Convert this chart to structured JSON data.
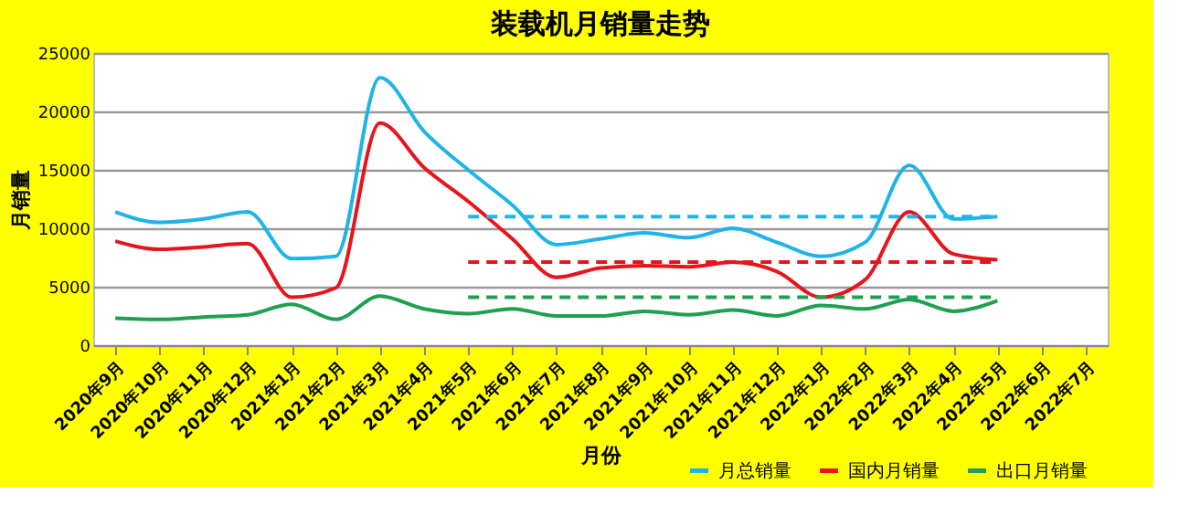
{
  "chart_data": {
    "type": "line",
    "title": "装载机月销量走势",
    "xlabel": "月份",
    "ylabel": "月销量",
    "categories": [
      "2020年9月",
      "2020年10月",
      "2020年11月",
      "2020年12月",
      "2021年1月",
      "2021年2月",
      "2021年3月",
      "2021年4月",
      "2021年5月",
      "2021年6月",
      "2021年7月",
      "2021年8月",
      "2021年9月",
      "2021年10月",
      "2021年11月",
      "2021年12月",
      "2022年1月",
      "2022年2月",
      "2022年3月",
      "2022年4月",
      "2022年5月",
      "2022年6月",
      "2022年7月"
    ],
    "series": [
      {
        "name": "月总销量",
        "color": "#1fb4e8",
        "values": [
          11400,
          10500,
          10800,
          11400,
          7400,
          7600,
          22900,
          18300,
          15000,
          12000,
          8600,
          9100,
          9600,
          9200,
          10000,
          8800,
          7600,
          8800,
          15400,
          10800,
          11000,
          null,
          null
        ]
      },
      {
        "name": "国内月销量",
        "color": "#e8141c",
        "values": [
          8900,
          8200,
          8400,
          8700,
          4100,
          4900,
          19000,
          15200,
          12300,
          9100,
          5800,
          6600,
          6800,
          6700,
          7100,
          6300,
          4100,
          5600,
          11400,
          7800,
          7300,
          null,
          null
        ]
      },
      {
        "name": "出口月销量",
        "color": "#1fa050",
        "values": [
          2300,
          2200,
          2400,
          2600,
          3500,
          2200,
          4200,
          3100,
          2700,
          3100,
          2500,
          2500,
          2900,
          2600,
          3000,
          2500,
          3400,
          3100,
          3900,
          2900,
          3800,
          null,
          null
        ]
      },
      {
        "color": "#1fb4e8",
        "line_style": "dashed",
        "values": [
          null,
          null,
          null,
          null,
          null,
          null,
          null,
          null,
          11000,
          11000,
          11000,
          11000,
          11000,
          11000,
          11000,
          11000,
          11000,
          11000,
          11000,
          11000,
          11000,
          null,
          null
        ]
      },
      {
        "color": "#e8141c",
        "line_style": "dashed",
        "values": [
          null,
          null,
          null,
          null,
          null,
          null,
          null,
          null,
          7100,
          7100,
          7100,
          7100,
          7100,
          7100,
          7100,
          7100,
          7100,
          7100,
          7100,
          7100,
          7100,
          null,
          null
        ]
      },
      {
        "color": "#1fa050",
        "line_style": "dashed",
        "values": [
          null,
          null,
          null,
          null,
          null,
          null,
          null,
          null,
          4100,
          4100,
          4100,
          4100,
          4100,
          4100,
          4100,
          4100,
          4100,
          4100,
          4100,
          4100,
          4100,
          null,
          null
        ]
      }
    ],
    "ylim": [
      0,
      25000
    ],
    "yticks": [
      0,
      5000,
      10000,
      15000,
      20000,
      25000
    ],
    "grid": "y",
    "legend": "bottom right"
  }
}
